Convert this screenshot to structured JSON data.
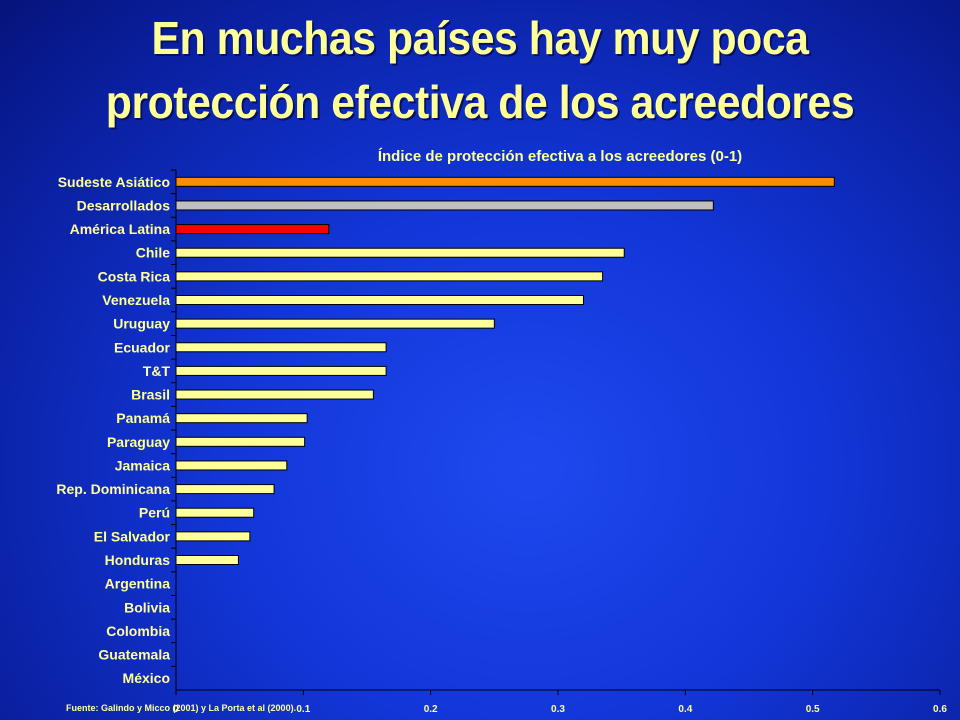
{
  "slide": {
    "title_line1": "En muchas países hay muy poca",
    "title_line2": "protección efectiva de los acreedores",
    "source": "Fuente: Galindo y Micco (2001) y La Porta et al (2000)."
  },
  "colors": {
    "background": "#1236d8",
    "text": "#ffff99",
    "bar_default": "#ffff99",
    "bar_sudeste": "#ff8c00",
    "bar_desarrollados": "#c0c0c0",
    "bar_latam": "#ff0000"
  },
  "chart_data": {
    "type": "bar",
    "orientation": "horizontal",
    "title": "Índice de protección efectiva a los acreedores (0-1)",
    "categories": [
      "Sudeste Asiático",
      "Desarrollados",
      "América Latina",
      "Chile",
      "Costa Rica",
      "Venezuela",
      "Uruguay",
      "Ecuador",
      "T&T",
      "Brasil",
      "Panamá",
      "Paraguay",
      "Jamaica",
      "Rep. Dominicana",
      "Perú",
      "El Salvador",
      "Honduras",
      "Argentina",
      "Bolivia",
      "Colombia",
      "Guatemala",
      "México"
    ],
    "values": [
      0.517,
      0.422,
      0.12,
      0.352,
      0.335,
      0.32,
      0.25,
      0.165,
      0.165,
      0.155,
      0.103,
      0.101,
      0.087,
      0.077,
      0.061,
      0.058,
      0.049,
      0,
      0,
      0,
      0,
      0
    ],
    "bar_colors": [
      "#ff8c00",
      "#c0c0c0",
      "#ff0000",
      "#ffff99",
      "#ffff99",
      "#ffff99",
      "#ffff99",
      "#ffff99",
      "#ffff99",
      "#ffff99",
      "#ffff99",
      "#ffff99",
      "#ffff99",
      "#ffff99",
      "#ffff99",
      "#ffff99",
      "#ffff99",
      "#ffff99",
      "#ffff99",
      "#ffff99",
      "#ffff99",
      "#ffff99"
    ],
    "xticks": [
      "0",
      "0.1",
      "0.2",
      "0.3",
      "0.4",
      "0.5",
      "0.6"
    ],
    "xlim": [
      0,
      0.6
    ],
    "grid": false,
    "legend": "none"
  }
}
